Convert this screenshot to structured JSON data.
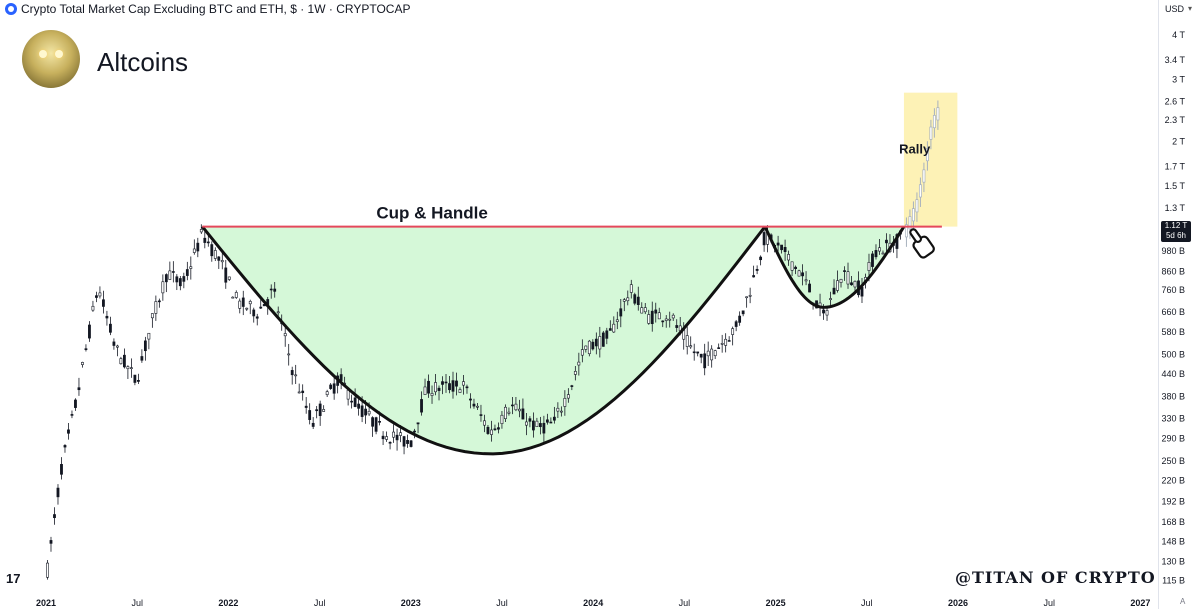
{
  "header": {
    "title": "Crypto Total Market Cap Excluding BTC and ETH, $ · 1W · CRYPTOCAP"
  },
  "brand": {
    "name": "Altcoins"
  },
  "currency": "USD",
  "current_price": {
    "value": "1.12 T",
    "countdown": "5d 6h"
  },
  "watermark": "@TITAN OF CRYPTO",
  "tv_logo": "17",
  "scale_mode": "A",
  "colors": {
    "cup_fill": "#d5f8d8",
    "resistance": "#e5485c",
    "rally_fill": "#fdf2b6",
    "candle": "#131722",
    "projected_candle": "#a7b1bd",
    "curve": "#111111"
  },
  "chart_data": {
    "type": "candlestick",
    "title": "Crypto Total Market Cap Excluding BTC and ETH",
    "interval": "1W",
    "y_scale": "log",
    "ylim": [
      108,
      4300
    ],
    "y_unit": "B USD",
    "x_ticks": [
      "2021",
      "Jul",
      "2022",
      "Jul",
      "2023",
      "Jul",
      "2024",
      "Jul",
      "2025",
      "Jul",
      "2026",
      "Jul",
      "2027"
    ],
    "y_ticks": [
      {
        "label": "4 T",
        "value": 4000
      },
      {
        "label": "3.4 T",
        "value": 3400
      },
      {
        "label": "3 T",
        "value": 3000
      },
      {
        "label": "2.6 T",
        "value": 2600
      },
      {
        "label": "2.3 T",
        "value": 2300
      },
      {
        "label": "2 T",
        "value": 2000
      },
      {
        "label": "1.7 T",
        "value": 1700
      },
      {
        "label": "1.5 T",
        "value": 1500
      },
      {
        "label": "1.3 T",
        "value": 1300
      },
      {
        "label": "980 B",
        "value": 980
      },
      {
        "label": "860 B",
        "value": 860
      },
      {
        "label": "760 B",
        "value": 760
      },
      {
        "label": "660 B",
        "value": 660
      },
      {
        "label": "580 B",
        "value": 580
      },
      {
        "label": "500 B",
        "value": 500
      },
      {
        "label": "440 B",
        "value": 440
      },
      {
        "label": "380 B",
        "value": 380
      },
      {
        "label": "330 B",
        "value": 330
      },
      {
        "label": "290 B",
        "value": 290
      },
      {
        "label": "250 B",
        "value": 250
      },
      {
        "label": "220 B",
        "value": 220
      },
      {
        "label": "192 B",
        "value": 192
      },
      {
        "label": "168 B",
        "value": 168
      },
      {
        "label": "148 B",
        "value": 148
      },
      {
        "label": "130 B",
        "value": 130
      },
      {
        "label": "115 B",
        "value": 115
      }
    ],
    "price_path": [
      [
        "2021-01-01",
        115
      ],
      [
        "2021-02-01",
        240
      ],
      [
        "2021-03-01",
        360
      ],
      [
        "2021-04-15",
        780
      ],
      [
        "2021-05-20",
        520
      ],
      [
        "2021-07-01",
        420
      ],
      [
        "2021-08-01",
        620
      ],
      [
        "2021-09-01",
        860
      ],
      [
        "2021-10-01",
        780
      ],
      [
        "2021-11-10",
        1100
      ],
      [
        "2021-12-15",
        920
      ],
      [
        "2022-01-20",
        700
      ],
      [
        "2022-03-01",
        660
      ],
      [
        "2022-04-01",
        760
      ],
      [
        "2022-05-10",
        450
      ],
      [
        "2022-06-18",
        320
      ],
      [
        "2022-08-10",
        430
      ],
      [
        "2022-09-15",
        360
      ],
      [
        "2022-11-10",
        300
      ],
      [
        "2022-12-31",
        280
      ],
      [
        "2023-02-01",
        400
      ],
      [
        "2023-04-15",
        410
      ],
      [
        "2023-06-10",
        300
      ],
      [
        "2023-07-20",
        360
      ],
      [
        "2023-09-10",
        310
      ],
      [
        "2023-10-15",
        320
      ],
      [
        "2023-11-15",
        400
      ],
      [
        "2023-12-15",
        520
      ],
      [
        "2024-02-01",
        560
      ],
      [
        "2024-03-15",
        760
      ],
      [
        "2024-04-20",
        640
      ],
      [
        "2024-06-01",
        650
      ],
      [
        "2024-07-15",
        520
      ],
      [
        "2024-08-10",
        480
      ],
      [
        "2024-10-15",
        600
      ],
      [
        "2024-11-15",
        800
      ],
      [
        "2024-12-10",
        1080
      ],
      [
        "2025-01-15",
        980
      ],
      [
        "2025-02-20",
        850
      ],
      [
        "2025-04-07",
        640
      ],
      [
        "2025-05-15",
        860
      ],
      [
        "2025-06-22",
        760
      ],
      [
        "2025-07-20",
        980
      ],
      [
        "2025-08-31",
        1040
      ],
      [
        "2025-09-15",
        1120
      ]
    ],
    "projected_path": [
      [
        "2025-09-20",
        1120
      ],
      [
        "2025-10-10",
        1300
      ],
      [
        "2025-10-25",
        1600
      ],
      [
        "2025-11-10",
        2200
      ],
      [
        "2025-11-25",
        2450
      ]
    ],
    "annotations": {
      "pattern_label": "Cup & Handle",
      "rally_label": "Rally",
      "resistance_value": 1150,
      "resistance_start": "2021-11-10",
      "resistance_end": "2025-11-30",
      "cup": {
        "start": "2021-11-10",
        "bottom": "2023-06-10",
        "bottom_value": 262,
        "end": "2024-12-10"
      },
      "handle": {
        "start": "2024-12-10",
        "bottom": "2025-04-07",
        "bottom_value": 680,
        "end": "2025-09-15"
      },
      "rally_box": {
        "start": "2025-09-15",
        "end": "2025-12-31",
        "low": 1150,
        "high": 2750
      }
    }
  }
}
